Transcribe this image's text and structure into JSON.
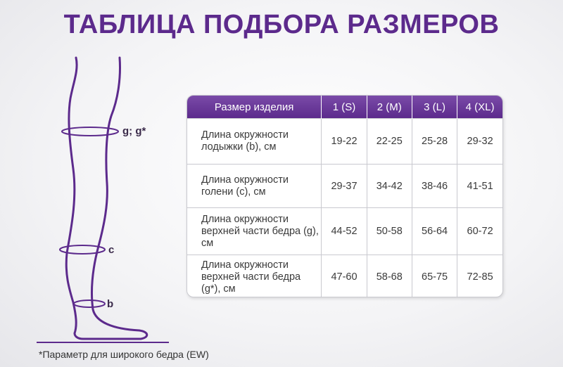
{
  "title": "ТАБЛИЦА ПОДБОРА РАЗМЕРОВ",
  "accent_color": "#5c2a8c",
  "leg": {
    "labels": [
      "g; g*",
      "c",
      "b"
    ]
  },
  "table": {
    "header": [
      "Размер изделия",
      "1 (S)",
      "2 (M)",
      "3 (L)",
      "4 (XL)"
    ],
    "rows": [
      {
        "label": "Длина окружности лодыжки (b), см",
        "values": [
          "19-22",
          "22-25",
          "25-28",
          "29-32"
        ]
      },
      {
        "label": "Длина окружности голени (c), см",
        "values": [
          "29-37",
          "34-42",
          "38-46",
          "41-51"
        ]
      },
      {
        "label": "Длина окружности верхней части бедра (g), см",
        "values": [
          "44-52",
          "50-58",
          "56-64",
          "60-72"
        ]
      },
      {
        "label": "Длина окружности верхней части бедра (g*), см",
        "values": [
          "47-60",
          "58-68",
          "65-75",
          "72-85"
        ]
      }
    ]
  },
  "footnote": "*Параметр для широкого бедра (EW)"
}
